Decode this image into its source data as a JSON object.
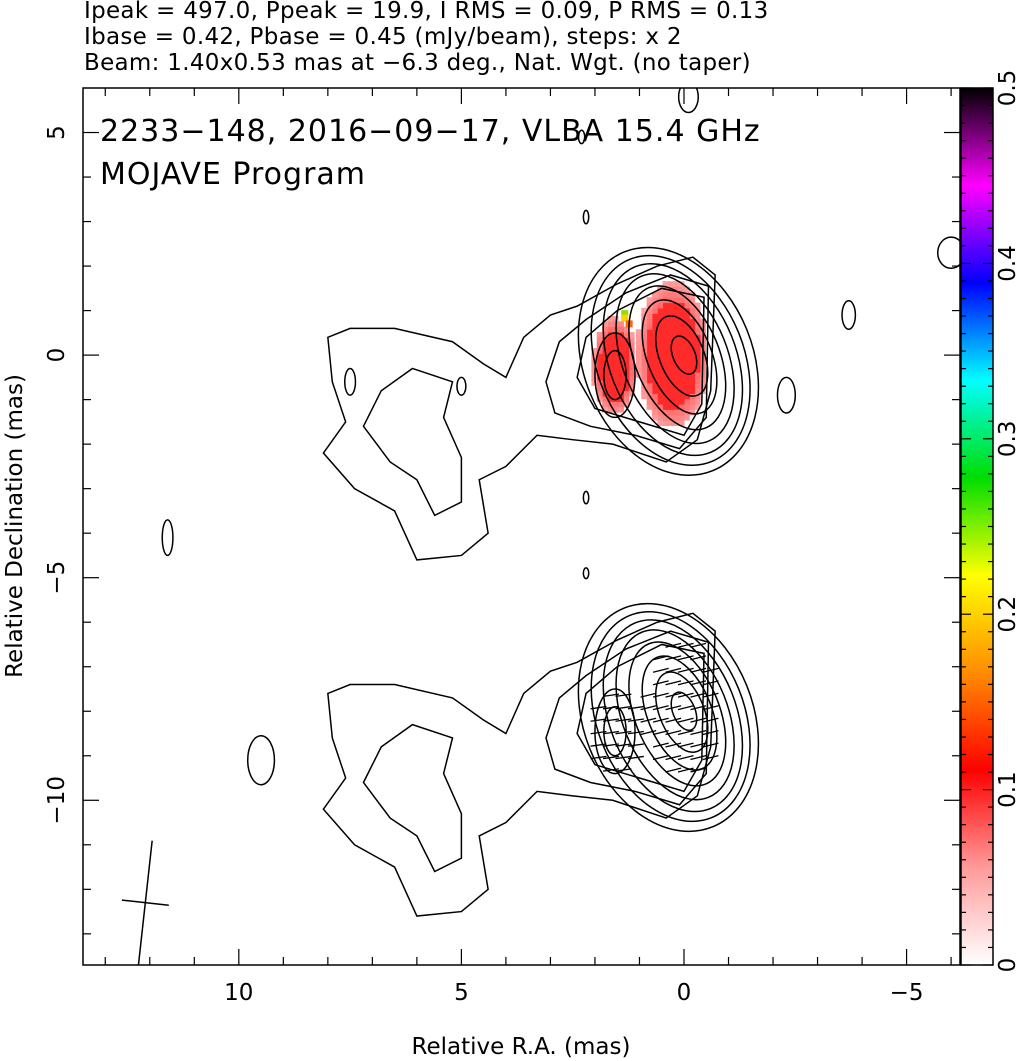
{
  "header": {
    "line1": "Ipeak = 497.0, Ppeak = 19.9, I RMS = 0.09, P RMS = 0.13",
    "line2": "Ibase = 0.42, Pbase = 0.45 (mJy/beam), steps: x 2",
    "line3": "Beam: 1.40x0.53 mas at −6.3 deg., Nat. Wgt. (no taper)"
  },
  "chart_data": {
    "type": "heatmap",
    "title": "2233−148, 2016−09−17, VLBA 15.4 GHz",
    "subtitle": "MOJAVE Program",
    "xlabel": "Relative R.A. (mas)",
    "ylabel": "Relative Declination (mas)",
    "xlim": [
      13.5,
      -6.2
    ],
    "ylim": [
      -13.7,
      6.0
    ],
    "x_ticks": [
      10,
      5,
      0,
      -5
    ],
    "x_tick_labels": [
      "10",
      "5",
      "0",
      "−5"
    ],
    "y_ticks": [
      5,
      0,
      -5,
      -10
    ],
    "y_tick_labels": [
      "5",
      "0",
      "−5",
      "−10"
    ],
    "colorbar": {
      "range": [
        0,
        0.5
      ],
      "ticks": [
        0,
        0.1,
        0.2,
        0.3,
        0.4,
        0.5
      ],
      "tick_labels": [
        "0",
        "0.1",
        "0.2",
        "0.3",
        "0.4",
        "0.5"
      ],
      "colors": [
        "#ffffff",
        "#ff9a9a",
        "#ff0000",
        "#ff8c00",
        "#ffff00",
        "#00dd00",
        "#00ffff",
        "#0000ff",
        "#ff00ff",
        "#000000"
      ]
    },
    "core_intensity_contours": {
      "center": [
        0,
        0
      ],
      "radii_x": [
        0.25,
        0.5,
        0.72,
        0.95,
        1.18,
        1.42,
        1.65,
        1.9
      ],
      "radii_y": [
        0.45,
        0.95,
        1.35,
        1.7,
        2.0,
        2.25,
        2.45,
        2.65
      ]
    },
    "lower_panel_offset_dec": -8,
    "polarization": {
      "fractional_pol_color": "#ff2a2a",
      "core_region": {
        "x_range": [
          -0.6,
          1.0
        ],
        "y_range": [
          -1.7,
          1.6
        ]
      },
      "jet_region": {
        "x_range": [
          1.0,
          2.0
        ],
        "y_range": [
          -1.4,
          0.8
        ]
      }
    },
    "beam": {
      "major_mas": 1.4,
      "minor_mas": 0.53,
      "pa_deg": -6.3,
      "position": [
        12.1,
        -12.3
      ]
    },
    "grid": false,
    "legend": "none"
  }
}
